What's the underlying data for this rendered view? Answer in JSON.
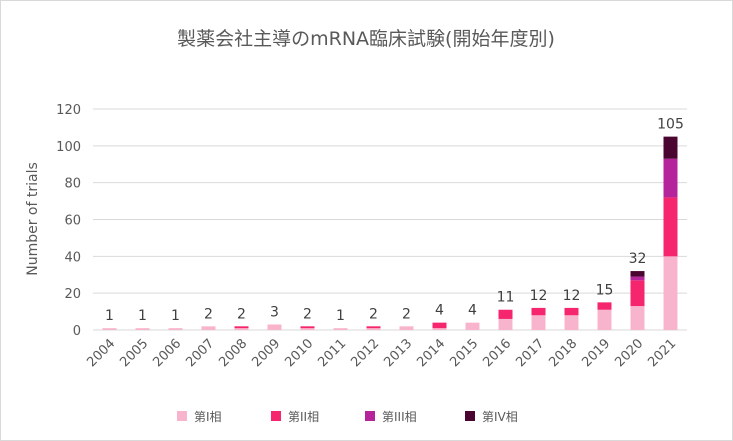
{
  "chart_data": {
    "type": "bar",
    "stacked": true,
    "title": "製薬会社主導のmRNA臨床試験(開始年度別)",
    "xlabel": "",
    "ylabel": "Number of trials",
    "ylim": [
      0,
      120
    ],
    "yticks": [
      0,
      20,
      40,
      60,
      80,
      100,
      120
    ],
    "grid": true,
    "legend_position": "bottom",
    "categories": [
      "2004",
      "2005",
      "2006",
      "2007",
      "2008",
      "2009",
      "2010",
      "2011",
      "2012",
      "2013",
      "2014",
      "2015",
      "2016",
      "2017",
      "2018",
      "2019",
      "2020",
      "2021"
    ],
    "series": [
      {
        "name": "第I相",
        "color": "#f9b4cd",
        "values": [
          1,
          1,
          1,
          2,
          1,
          3,
          1,
          1,
          1,
          2,
          1,
          4,
          6,
          8,
          8,
          11,
          13,
          40
        ]
      },
      {
        "name": "第II相",
        "color": "#f5256e",
        "values": [
          0,
          0,
          0,
          0,
          1,
          0,
          1,
          0,
          1,
          0,
          3,
          0,
          5,
          4,
          4,
          4,
          14,
          32
        ]
      },
      {
        "name": "第III相",
        "color": "#b5249a",
        "values": [
          0,
          0,
          0,
          0,
          0,
          0,
          0,
          0,
          0,
          0,
          0,
          0,
          0,
          0,
          0,
          0,
          2,
          21
        ]
      },
      {
        "name": "第IV相",
        "color": "#4a0530",
        "values": [
          0,
          0,
          0,
          0,
          0,
          0,
          0,
          0,
          0,
          0,
          0,
          0,
          0,
          0,
          0,
          0,
          3,
          12
        ]
      }
    ],
    "totals": [
      1,
      1,
      1,
      2,
      2,
      3,
      2,
      1,
      2,
      2,
      4,
      4,
      11,
      12,
      12,
      15,
      32,
      105
    ]
  }
}
